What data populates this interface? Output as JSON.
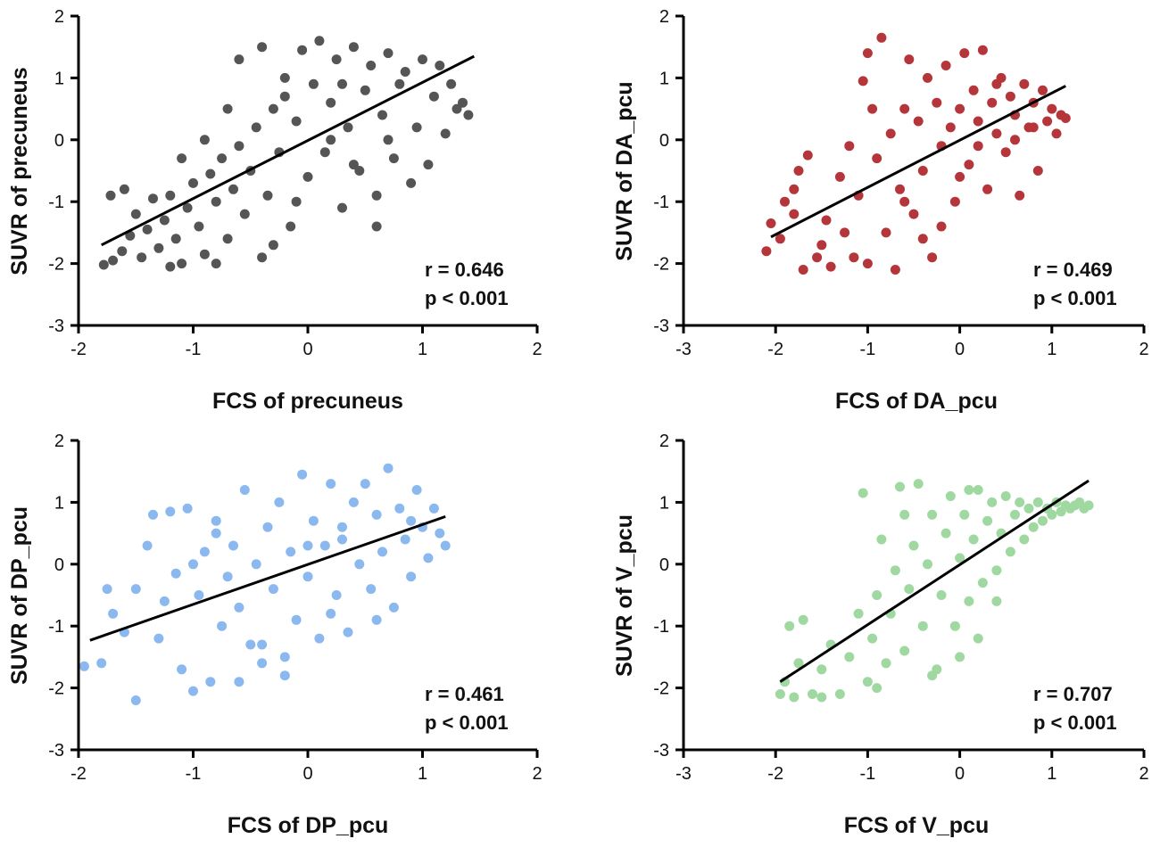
{
  "chart_data": [
    {
      "type": "scatter",
      "id": "precuneus",
      "xlabel": "FCS of precuneus",
      "ylabel": "SUVR of precuneus",
      "color": "#555555",
      "xlim": [
        -2,
        2
      ],
      "ylim": [
        -3,
        2
      ],
      "xticks": [
        -2,
        -1,
        0,
        1,
        2
      ],
      "yticks": [
        -3,
        -2,
        -1,
        0,
        1,
        2
      ],
      "fit": {
        "x": [
          -1.8,
          1.45
        ],
        "y": [
          -1.7,
          1.35
        ]
      },
      "r_text": "r = 0.646",
      "p_text": "p < 0.001",
      "points": [
        [
          -1.78,
          -2.02
        ],
        [
          -1.7,
          -1.95
        ],
        [
          -1.62,
          -1.8
        ],
        [
          -1.55,
          -1.55
        ],
        [
          -1.72,
          -0.9
        ],
        [
          -1.6,
          -0.8
        ],
        [
          -1.5,
          -1.2
        ],
        [
          -1.45,
          -1.9
        ],
        [
          -1.4,
          -1.45
        ],
        [
          -1.35,
          -0.95
        ],
        [
          -1.3,
          -1.75
        ],
        [
          -1.25,
          -1.3
        ],
        [
          -1.2,
          -0.9
        ],
        [
          -1.15,
          -1.6
        ],
        [
          -1.1,
          -2.0
        ],
        [
          -1.05,
          -1.1
        ],
        [
          -1.0,
          -0.7
        ],
        [
          -0.95,
          -1.4
        ],
        [
          -0.9,
          -1.85
        ],
        [
          -0.85,
          -0.55
        ],
        [
          -0.8,
          -1.0
        ],
        [
          -0.75,
          -0.3
        ],
        [
          -0.7,
          -1.6
        ],
        [
          -0.65,
          -0.8
        ],
        [
          -0.6,
          -0.1
        ],
        [
          -0.55,
          -1.2
        ],
        [
          -0.5,
          -0.5
        ],
        [
          -0.45,
          0.2
        ],
        [
          -0.4,
          -1.9
        ],
        [
          -0.35,
          -0.9
        ],
        [
          -0.3,
          0.5
        ],
        [
          -0.25,
          -0.2
        ],
        [
          -0.2,
          1.0
        ],
        [
          -0.15,
          -1.4
        ],
        [
          -0.1,
          0.3
        ],
        [
          -0.05,
          1.45
        ],
        [
          0.0,
          -0.6
        ],
        [
          0.05,
          0.9
        ],
        [
          0.1,
          1.6
        ],
        [
          0.15,
          -0.2
        ],
        [
          0.2,
          0.6
        ],
        [
          0.25,
          1.3
        ],
        [
          0.3,
          -1.1
        ],
        [
          0.35,
          0.2
        ],
        [
          0.4,
          1.5
        ],
        [
          0.45,
          -0.5
        ],
        [
          0.5,
          0.8
        ],
        [
          0.55,
          1.2
        ],
        [
          0.6,
          -0.9
        ],
        [
          0.65,
          0.4
        ],
        [
          0.7,
          1.4
        ],
        [
          0.75,
          -0.3
        ],
        [
          0.8,
          0.9
        ],
        [
          0.85,
          1.1
        ],
        [
          0.9,
          -0.7
        ],
        [
          0.95,
          0.2
        ],
        [
          1.0,
          1.3
        ],
        [
          1.05,
          -0.4
        ],
        [
          1.1,
          0.7
        ],
        [
          1.15,
          1.2
        ],
        [
          1.2,
          0.1
        ],
        [
          1.25,
          0.9
        ],
        [
          1.3,
          0.5
        ],
        [
          1.35,
          0.6
        ],
        [
          1.4,
          0.4
        ],
        [
          -0.6,
          1.3
        ],
        [
          -0.4,
          1.5
        ],
        [
          -0.2,
          0.7
        ],
        [
          0.2,
          0.0
        ],
        [
          0.4,
          -0.4
        ],
        [
          -1.2,
          -2.05
        ],
        [
          -0.8,
          -2.0
        ],
        [
          -0.3,
          -1.7
        ],
        [
          0.6,
          -1.4
        ],
        [
          -0.9,
          0.0
        ],
        [
          -0.1,
          -1.0
        ],
        [
          0.3,
          0.9
        ],
        [
          0.7,
          0.0
        ],
        [
          -1.1,
          -0.3
        ],
        [
          -0.7,
          0.5
        ]
      ]
    },
    {
      "type": "scatter",
      "id": "da_pcu",
      "xlabel": "FCS of DA_pcu",
      "ylabel": "SUVR of DA_pcu",
      "color": "#b5363a",
      "xlim": [
        -3,
        2
      ],
      "ylim": [
        -3,
        2
      ],
      "xticks": [
        -3,
        -2,
        -1,
        0,
        1,
        2
      ],
      "yticks": [
        -3,
        -2,
        -1,
        0,
        1,
        2
      ],
      "fit": {
        "x": [
          -2.05,
          1.15
        ],
        "y": [
          -1.57,
          0.87
        ]
      },
      "r_text": "r = 0.469",
      "p_text": "p < 0.001",
      "points": [
        [
          -2.1,
          -1.8
        ],
        [
          -2.05,
          -1.35
        ],
        [
          -1.95,
          -1.6
        ],
        [
          -1.9,
          -1.0
        ],
        [
          -1.8,
          -0.8
        ],
        [
          -1.75,
          -0.5
        ],
        [
          -1.7,
          -2.1
        ],
        [
          -1.65,
          -0.25
        ],
        [
          -1.55,
          -1.9
        ],
        [
          -1.45,
          -1.3
        ],
        [
          -1.4,
          -2.05
        ],
        [
          -1.3,
          -0.6
        ],
        [
          -1.25,
          -1.5
        ],
        [
          -1.15,
          -1.9
        ],
        [
          -1.1,
          -0.9
        ],
        [
          -1.0,
          -2.0
        ],
        [
          -1.05,
          0.95
        ],
        [
          -1.0,
          1.4
        ],
        [
          -0.9,
          -0.3
        ],
        [
          -0.85,
          1.65
        ],
        [
          -0.8,
          -1.5
        ],
        [
          -0.75,
          0.1
        ],
        [
          -0.7,
          -2.1
        ],
        [
          -0.65,
          -0.8
        ],
        [
          -0.6,
          0.5
        ],
        [
          -0.55,
          1.3
        ],
        [
          -0.5,
          -1.2
        ],
        [
          -0.45,
          0.3
        ],
        [
          -0.4,
          -0.5
        ],
        [
          -0.35,
          1.0
        ],
        [
          -0.3,
          -1.9
        ],
        [
          -0.25,
          0.6
        ],
        [
          -0.2,
          -0.1
        ],
        [
          -0.15,
          1.2
        ],
        [
          -0.1,
          0.2
        ],
        [
          -0.05,
          -1.0
        ],
        [
          0.0,
          0.5
        ],
        [
          0.05,
          1.4
        ],
        [
          0.1,
          -0.4
        ],
        [
          0.15,
          0.8
        ],
        [
          0.2,
          0.3
        ],
        [
          0.25,
          1.45
        ],
        [
          0.3,
          -0.8
        ],
        [
          0.35,
          0.6
        ],
        [
          0.4,
          0.1
        ],
        [
          0.45,
          1.0
        ],
        [
          0.5,
          -0.2
        ],
        [
          0.55,
          0.7
        ],
        [
          0.6,
          0.4
        ],
        [
          0.65,
          -0.9
        ],
        [
          0.7,
          0.9
        ],
        [
          0.75,
          0.2
        ],
        [
          0.8,
          0.6
        ],
        [
          0.85,
          -0.5
        ],
        [
          0.9,
          0.8
        ],
        [
          0.95,
          0.3
        ],
        [
          1.0,
          0.5
        ],
        [
          1.05,
          0.1
        ],
        [
          1.1,
          0.4
        ],
        [
          1.15,
          0.35
        ],
        [
          -0.4,
          -1.6
        ],
        [
          -0.2,
          -1.4
        ],
        [
          0.0,
          -0.6
        ],
        [
          0.2,
          -0.1
        ],
        [
          -1.2,
          -0.1
        ],
        [
          -0.95,
          0.5
        ],
        [
          -0.6,
          -1.0
        ],
        [
          0.4,
          0.9
        ],
        [
          0.6,
          0.0
        ],
        [
          0.8,
          0.2
        ],
        [
          -1.5,
          -1.7
        ],
        [
          -1.8,
          -1.2
        ]
      ]
    },
    {
      "type": "scatter",
      "id": "dp_pcu",
      "xlabel": "FCS of DP_pcu",
      "ylabel": "SUVR of DP_pcu",
      "color": "#8ab8ef",
      "xlim": [
        -2,
        2
      ],
      "ylim": [
        -3,
        2
      ],
      "xticks": [
        -2,
        -1,
        0,
        1,
        2
      ],
      "yticks": [
        -3,
        -2,
        -1,
        0,
        1,
        2
      ],
      "fit": {
        "x": [
          -1.9,
          1.2
        ],
        "y": [
          -1.23,
          0.77
        ]
      },
      "r_text": "r = 0.461",
      "p_text": "p < 0.001",
      "points": [
        [
          -1.95,
          -1.65
        ],
        [
          -1.8,
          -1.6
        ],
        [
          -1.75,
          -0.4
        ],
        [
          -1.7,
          -0.8
        ],
        [
          -1.6,
          -1.1
        ],
        [
          -1.5,
          -0.4
        ],
        [
          -1.5,
          -2.2
        ],
        [
          -1.4,
          0.3
        ],
        [
          -1.35,
          0.8
        ],
        [
          -1.3,
          -1.2
        ],
        [
          -1.25,
          -0.6
        ],
        [
          -1.2,
          0.85
        ],
        [
          -1.15,
          -0.15
        ],
        [
          -1.1,
          -1.7
        ],
        [
          -1.05,
          0.9
        ],
        [
          -1.0,
          -2.05
        ],
        [
          -0.95,
          -0.5
        ],
        [
          -0.9,
          0.2
        ],
        [
          -0.85,
          -1.9
        ],
        [
          -0.8,
          0.5
        ],
        [
          -0.75,
          -1.0
        ],
        [
          -0.7,
          -0.2
        ],
        [
          -0.65,
          0.3
        ],
        [
          -0.6,
          -0.7
        ],
        [
          -0.55,
          1.2
        ],
        [
          -0.5,
          -1.3
        ],
        [
          -0.45,
          0.0
        ],
        [
          -0.4,
          -1.6
        ],
        [
          -0.35,
          0.6
        ],
        [
          -0.3,
          -0.4
        ],
        [
          -0.25,
          1.0
        ],
        [
          -0.2,
          -1.8
        ],
        [
          -0.15,
          0.2
        ],
        [
          -0.1,
          -0.9
        ],
        [
          -0.05,
          1.45
        ],
        [
          0.0,
          -0.2
        ],
        [
          0.05,
          0.7
        ],
        [
          0.1,
          -1.2
        ],
        [
          0.15,
          0.3
        ],
        [
          0.2,
          1.3
        ],
        [
          0.25,
          -0.5
        ],
        [
          0.3,
          0.6
        ],
        [
          0.35,
          -1.1
        ],
        [
          0.4,
          1.0
        ],
        [
          0.45,
          0.0
        ],
        [
          0.5,
          1.3
        ],
        [
          0.55,
          -0.4
        ],
        [
          0.6,
          0.8
        ],
        [
          0.65,
          0.2
        ],
        [
          0.7,
          1.55
        ],
        [
          0.75,
          -0.7
        ],
        [
          0.8,
          0.9
        ],
        [
          0.85,
          0.4
        ],
        [
          0.9,
          -0.2
        ],
        [
          0.95,
          1.2
        ],
        [
          1.0,
          0.6
        ],
        [
          1.05,
          0.1
        ],
        [
          1.1,
          0.9
        ],
        [
          1.15,
          0.5
        ],
        [
          1.2,
          0.3
        ],
        [
          -0.4,
          -1.3
        ],
        [
          -0.2,
          -1.5
        ],
        [
          0.0,
          0.3
        ],
        [
          0.3,
          0.4
        ],
        [
          -1.0,
          0.0
        ],
        [
          -0.6,
          -1.9
        ],
        [
          0.6,
          -0.9
        ],
        [
          0.9,
          0.7
        ],
        [
          -0.8,
          0.7
        ],
        [
          0.2,
          -0.8
        ]
      ]
    },
    {
      "type": "scatter",
      "id": "v_pcu",
      "xlabel": "FCS of V_pcu",
      "ylabel": "SUVR of V_pcu",
      "color": "#9fd8a0",
      "xlim": [
        -3,
        2
      ],
      "ylim": [
        -3,
        2
      ],
      "xticks": [
        -3,
        -2,
        -1,
        0,
        1,
        2
      ],
      "yticks": [
        -3,
        -2,
        -1,
        0,
        1,
        2
      ],
      "fit": {
        "x": [
          -1.95,
          1.4
        ],
        "y": [
          -1.9,
          1.35
        ]
      },
      "r_text": "r = 0.707",
      "p_text": "p < 0.001",
      "points": [
        [
          -1.95,
          -2.1
        ],
        [
          -1.9,
          -1.9
        ],
        [
          -1.85,
          -1.0
        ],
        [
          -1.8,
          -2.15
        ],
        [
          -1.75,
          -1.6
        ],
        [
          -1.7,
          -0.9
        ],
        [
          -1.6,
          -2.1
        ],
        [
          -1.5,
          -1.7
        ],
        [
          -1.4,
          -1.3
        ],
        [
          -1.3,
          -2.1
        ],
        [
          -1.2,
          -1.5
        ],
        [
          -1.1,
          -0.8
        ],
        [
          -1.05,
          1.15
        ],
        [
          -1.0,
          -1.9
        ],
        [
          -0.95,
          -1.2
        ],
        [
          -0.9,
          -0.5
        ],
        [
          -0.85,
          0.4
        ],
        [
          -0.8,
          -1.6
        ],
        [
          -0.75,
          -0.8
        ],
        [
          -0.7,
          -0.1
        ],
        [
          -0.65,
          1.25
        ],
        [
          -0.6,
          -1.4
        ],
        [
          -0.55,
          -0.4
        ],
        [
          -0.5,
          0.3
        ],
        [
          -0.45,
          1.3
        ],
        [
          -0.4,
          -1.0
        ],
        [
          -0.35,
          0.0
        ],
        [
          -0.3,
          0.8
        ],
        [
          -0.25,
          -1.7
        ],
        [
          -0.2,
          -0.5
        ],
        [
          -0.15,
          0.5
        ],
        [
          -0.1,
          1.1
        ],
        [
          -0.05,
          -1.0
        ],
        [
          0.0,
          0.1
        ],
        [
          0.05,
          0.8
        ],
        [
          0.1,
          -0.6
        ],
        [
          0.15,
          0.4
        ],
        [
          0.2,
          1.2
        ],
        [
          0.25,
          -0.3
        ],
        [
          0.3,
          0.7
        ],
        [
          0.35,
          1.0
        ],
        [
          0.4,
          -0.1
        ],
        [
          0.45,
          0.5
        ],
        [
          0.5,
          1.1
        ],
        [
          0.55,
          0.2
        ],
        [
          0.6,
          0.8
        ],
        [
          0.65,
          1.0
        ],
        [
          0.7,
          0.4
        ],
        [
          0.75,
          0.9
        ],
        [
          0.8,
          0.6
        ],
        [
          0.85,
          1.0
        ],
        [
          0.9,
          0.7
        ],
        [
          0.95,
          0.9
        ],
        [
          1.0,
          0.8
        ],
        [
          1.05,
          1.0
        ],
        [
          1.1,
          0.85
        ],
        [
          1.15,
          0.95
        ],
        [
          1.2,
          0.9
        ],
        [
          1.25,
          0.95
        ],
        [
          1.3,
          1.0
        ],
        [
          1.35,
          0.9
        ],
        [
          1.4,
          0.95
        ],
        [
          0.0,
          -1.5
        ],
        [
          -0.3,
          -1.8
        ],
        [
          0.2,
          -1.2
        ],
        [
          -1.5,
          -2.15
        ],
        [
          -0.9,
          -2.0
        ],
        [
          0.4,
          -0.6
        ],
        [
          -0.6,
          0.8
        ],
        [
          0.1,
          1.2
        ]
      ]
    }
  ]
}
